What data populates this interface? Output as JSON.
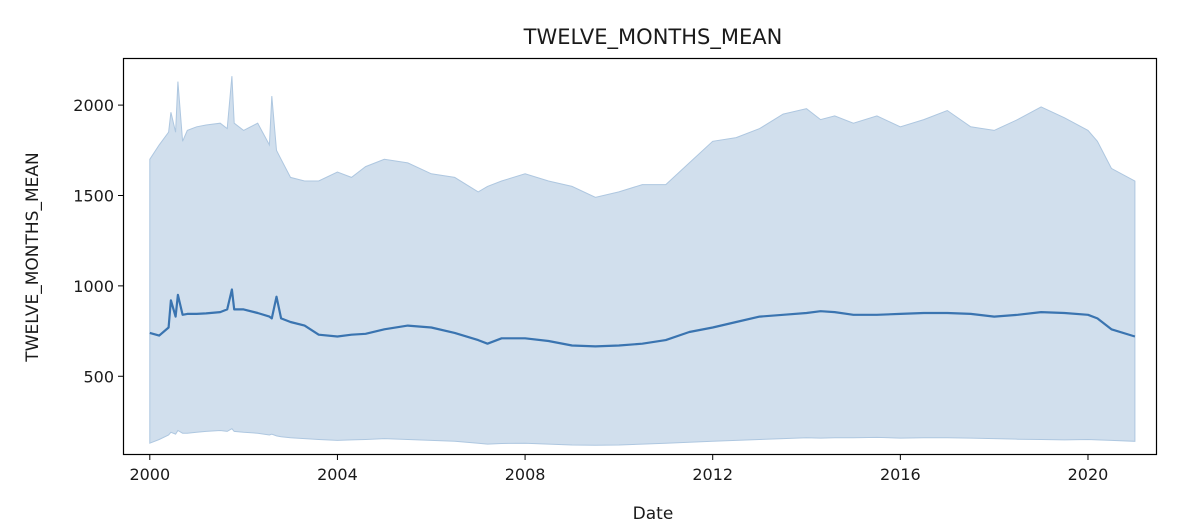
{
  "chart_data": {
    "type": "line",
    "title": "TWELVE_MONTHS_MEAN",
    "xlabel": "Date",
    "ylabel": "TWELVE_MONTHS_MEAN",
    "xlim": [
      1999.45,
      2021.45
    ],
    "ylim": [
      70,
      2255
    ],
    "x_ticks": [
      2000,
      2004,
      2008,
      2012,
      2016,
      2020
    ],
    "x_tick_labels": [
      "2000",
      "2004",
      "2008",
      "2012",
      "2016",
      "2020"
    ],
    "y_ticks": [
      500,
      1000,
      1500,
      2000
    ],
    "y_tick_labels": [
      "500",
      "1000",
      "1500",
      "2000"
    ],
    "grid": false,
    "colors": {
      "line": "#3a74b0",
      "band": "#c9d9ea",
      "band_edge": "#aec7e0",
      "axis": "#000000"
    },
    "series": [
      {
        "x": [
          2000.0,
          2000.2,
          2000.4,
          2000.45,
          2000.55,
          2000.6,
          2000.7,
          2000.8,
          2001.0,
          2001.2,
          2001.5,
          2001.65,
          2001.75,
          2001.8,
          2002.0,
          2002.3,
          2002.55,
          2002.6,
          2002.7,
          2002.8,
          2003.0,
          2003.3,
          2003.6,
          2004.0,
          2004.3,
          2004.6,
          2005.0,
          2005.5,
          2006.0,
          2006.5,
          2007.0,
          2007.2,
          2007.5,
          2008.0,
          2008.5,
          2009.0,
          2009.5,
          2010.0,
          2010.5,
          2011.0,
          2011.5,
          2012.0,
          2012.5,
          2013.0,
          2013.5,
          2014.0,
          2014.3,
          2014.6,
          2015.0,
          2015.5,
          2016.0,
          2016.5,
          2017.0,
          2017.5,
          2018.0,
          2018.5,
          2019.0,
          2019.5,
          2020.0,
          2020.2,
          2020.5,
          2021.0
        ],
        "mean": [
          740,
          725,
          770,
          920,
          830,
          950,
          840,
          845,
          845,
          848,
          855,
          870,
          980,
          870,
          870,
          850,
          830,
          820,
          940,
          820,
          800,
          780,
          730,
          720,
          730,
          735,
          760,
          780,
          770,
          740,
          700,
          680,
          710,
          710,
          695,
          670,
          665,
          670,
          680,
          700,
          745,
          770,
          800,
          830,
          840,
          850,
          860,
          855,
          840,
          840,
          845,
          850,
          850,
          845,
          830,
          840,
          855,
          850,
          840,
          820,
          760,
          720
        ],
        "upper": [
          1700,
          1780,
          1850,
          1960,
          1850,
          2130,
          1800,
          1860,
          1880,
          1890,
          1900,
          1870,
          2160,
          1900,
          1860,
          1900,
          1780,
          2050,
          1750,
          1700,
          1600,
          1580,
          1580,
          1630,
          1600,
          1660,
          1700,
          1680,
          1620,
          1600,
          1520,
          1550,
          1580,
          1620,
          1580,
          1550,
          1490,
          1520,
          1560,
          1560,
          1680,
          1800,
          1820,
          1870,
          1950,
          1980,
          1920,
          1940,
          1900,
          1940,
          1880,
          1920,
          1970,
          1880,
          1860,
          1920,
          1990,
          1930,
          1860,
          1800,
          1650,
          1580
        ],
        "lower": [
          130,
          150,
          175,
          190,
          180,
          200,
          185,
          185,
          190,
          195,
          200,
          195,
          210,
          195,
          190,
          185,
          175,
          180,
          170,
          165,
          160,
          155,
          150,
          145,
          148,
          150,
          155,
          150,
          145,
          140,
          130,
          125,
          128,
          130,
          125,
          120,
          118,
          120,
          125,
          130,
          135,
          140,
          145,
          150,
          155,
          160,
          158,
          160,
          160,
          162,
          158,
          160,
          160,
          158,
          155,
          152,
          150,
          148,
          150,
          148,
          145,
          140
        ]
      }
    ]
  }
}
